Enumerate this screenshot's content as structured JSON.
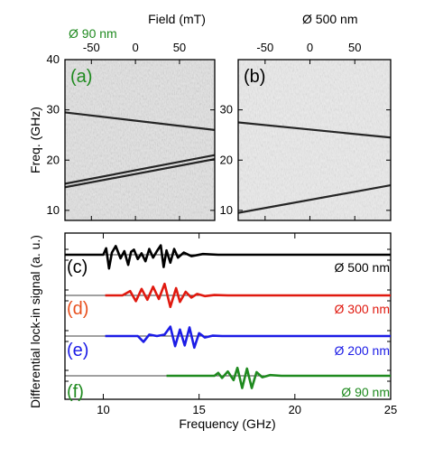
{
  "colors": {
    "black": "#000000",
    "red": "#e0190f",
    "blue": "#1c1ce6",
    "green": "#1f8a1f",
    "orange_label": "#e8501e"
  },
  "chart_data": [
    {
      "type": "heatmap",
      "panel": "(a)",
      "size_label": "Ø 90 nm",
      "xlabel": "Field (mT)",
      "ylabel": "Freq. (GHz)",
      "xlim": [
        -80,
        90
      ],
      "ylim": [
        8,
        40
      ],
      "x_ticks": [
        -50,
        0,
        50
      ],
      "y_ticks": [
        10,
        20,
        30,
        40
      ],
      "dominant_modes": [
        {
          "name": "mode1",
          "points": [
            [
              -80,
              14.6
            ],
            [
              90,
              20.2
            ]
          ]
        },
        {
          "name": "mode2",
          "points": [
            [
              -80,
              15.3
            ],
            [
              90,
              21.0
            ]
          ]
        },
        {
          "name": "mode3",
          "points": [
            [
              -80,
              29.5
            ],
            [
              90,
              26.0
            ]
          ]
        }
      ]
    },
    {
      "type": "heatmap",
      "panel": "(b)",
      "size_label": "Ø 500 nm",
      "xlabel": "Field (mT)",
      "ylim": [
        8,
        40
      ],
      "xlim": [
        -80,
        90
      ],
      "x_ticks": [
        -50,
        0,
        50
      ],
      "y_ticks": [
        10,
        20,
        30
      ],
      "dominant_modes": [
        {
          "name": "mode1",
          "points": [
            [
              -80,
              9.5
            ],
            [
              90,
              15.0
            ]
          ]
        },
        {
          "name": "mode2",
          "points": [
            [
              -80,
              27.5
            ],
            [
              90,
              24.5
            ]
          ]
        }
      ]
    },
    {
      "type": "line",
      "xlabel": "Frequency (GHz)",
      "ylabel": "Differential lock-in signal (a. u.)",
      "xlim": [
        8,
        25
      ],
      "x_ticks": [
        10,
        15,
        20,
        25
      ],
      "series": [
        {
          "name": "Ø 500 nm",
          "panel": "(c)",
          "color": "#000000",
          "x": [
            8.0,
            9.6,
            10.0,
            10.15,
            10.3,
            10.45,
            10.65,
            10.9,
            11.1,
            11.3,
            11.45,
            11.6,
            11.8,
            12.0,
            12.2,
            12.4,
            12.6,
            12.8,
            13.0,
            13.15,
            13.3,
            13.5,
            13.7,
            13.9,
            14.2,
            14.6,
            15.2,
            16.0,
            25.0
          ],
          "y": [
            0,
            0,
            0,
            0.9,
            -1.9,
            0.3,
            1.2,
            -0.5,
            0.5,
            -1.4,
            0.4,
            0.7,
            -0.6,
            0.2,
            -0.9,
            0.8,
            -0.4,
            0.5,
            1.3,
            -1.7,
            0.6,
            -1.1,
            0.8,
            -0.4,
            0.3,
            -0.2,
            0.1,
            0,
            0
          ]
        },
        {
          "name": "Ø 300 nm",
          "panel": "(d)",
          "color": "#e0190f",
          "x": [
            10.1,
            11.0,
            11.4,
            11.7,
            12.0,
            12.3,
            12.6,
            12.9,
            13.2,
            13.5,
            13.8,
            14.0,
            14.3,
            14.6,
            14.9,
            15.3,
            15.8,
            16.5,
            25.0
          ],
          "y": [
            0,
            0,
            0.6,
            -0.8,
            0.9,
            -0.6,
            1.2,
            -0.5,
            1.6,
            -1.6,
            1.0,
            -0.9,
            0.5,
            -0.3,
            0.2,
            -0.1,
            0.05,
            0,
            0
          ]
        },
        {
          "name": "Ø 200 nm",
          "panel": "(e)",
          "color": "#1c1ce6",
          "x": [
            10.1,
            11.8,
            12.1,
            12.4,
            12.8,
            13.2,
            13.5,
            13.75,
            14.0,
            14.25,
            14.5,
            14.75,
            15.0,
            15.3,
            15.7,
            16.2,
            25.0
          ],
          "y": [
            0,
            0,
            -0.8,
            0.2,
            0,
            0.2,
            1.3,
            -1.4,
            0.9,
            -1.3,
            1.2,
            -1.6,
            0.4,
            -0.2,
            0.05,
            0,
            0
          ]
        },
        {
          "name": "Ø 90 nm",
          "panel": "(f)",
          "color": "#1f8a1f",
          "x": [
            13.3,
            15.8,
            16.0,
            16.2,
            16.5,
            16.8,
            17.0,
            17.25,
            17.5,
            17.75,
            18.0,
            18.3,
            18.7,
            19.3,
            25.0
          ],
          "y": [
            0,
            0,
            0.4,
            -0.3,
            0.6,
            -0.6,
            1.1,
            -1.7,
            1.0,
            -1.7,
            0.5,
            -0.2,
            0.1,
            0,
            0
          ]
        }
      ]
    }
  ]
}
